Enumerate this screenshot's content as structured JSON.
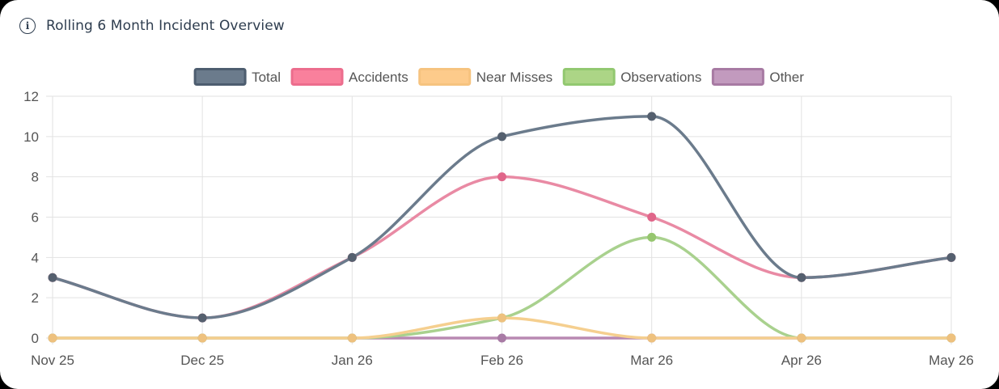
{
  "card": {
    "title": "Rolling 6 Month Incident Overview",
    "info_icon": "info-icon"
  },
  "chart_data": {
    "type": "line",
    "title": "Rolling 6 Month Incident Overview",
    "categories": [
      "Nov 25",
      "Dec 25",
      "Jan 26",
      "Feb 26",
      "Mar 26",
      "Apr 26",
      "May 26"
    ],
    "ylim": [
      0,
      12
    ],
    "yticks": [
      0,
      2,
      4,
      6,
      8,
      10,
      12
    ],
    "grid": true,
    "legend_position": "top-center",
    "series": [
      {
        "name": "Total",
        "values": [
          3,
          1,
          4,
          10,
          11,
          3,
          4
        ],
        "color": "#6b7b8c",
        "fill": "#6b7b8c",
        "legend_border": "#4d5d6f"
      },
      {
        "name": "Accidents",
        "values": [
          3,
          1,
          4,
          8,
          6,
          3,
          4
        ],
        "color": "#e98aa4",
        "fill": "#f9809c",
        "legend_border": "#ec6d8d"
      },
      {
        "name": "Near Misses",
        "values": [
          0,
          0,
          0,
          1,
          0,
          0,
          0
        ],
        "color": "#f5cf8f",
        "fill": "#fdcb8b",
        "legend_border": "#f6c37f"
      },
      {
        "name": "Observations",
        "values": [
          0,
          0,
          0,
          1,
          5,
          0,
          0
        ],
        "color": "#a9d18e",
        "fill": "#acd586",
        "legend_border": "#92c870"
      },
      {
        "name": "Other",
        "values": [
          0,
          0,
          0,
          0,
          0,
          0,
          0
        ],
        "color": "#b889b2",
        "fill": "#c29abe",
        "legend_border": "#a77aa3"
      }
    ],
    "point_colors": {
      "Total": "#55606f",
      "Accidents": "#e0668a",
      "Near Misses": "#eec17e",
      "Observations": "#96c66f",
      "Other": "#a87ba5"
    }
  }
}
